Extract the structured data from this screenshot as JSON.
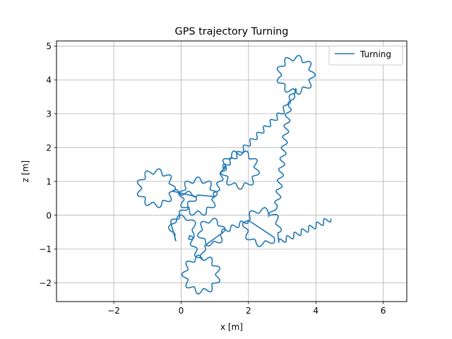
{
  "chart_data": {
    "type": "line",
    "title": "GPS trajectory Turning",
    "xlabel": "x [m]",
    "ylabel": "z [m]",
    "xlim": [
      -3.7,
      6.7
    ],
    "ylim": [
      -2.55,
      5.15
    ],
    "xticks": [
      -2,
      0,
      2,
      4,
      6
    ],
    "yticks": [
      -2,
      -1,
      0,
      1,
      2,
      3,
      4,
      5
    ],
    "grid": true,
    "legend_position": "top-right",
    "colors": {
      "series": "#1f77b4",
      "grid": "#b0b0b0"
    },
    "series": [
      {
        "name": "Turning",
        "segments": [
          {
            "kind": "line",
            "from": [
              4.45,
              -0.1
            ],
            "to": [
              2.9,
              -0.8
            ],
            "wiggle_amp": 0.08,
            "wiggles": 7
          },
          {
            "kind": "loop",
            "center": [
              2.4,
              -0.35
            ],
            "radius": 0.5,
            "start_deg": -20,
            "sweep_deg": 340,
            "wiggle_amp": 0.08,
            "wiggles": 8
          },
          {
            "kind": "line",
            "from": [
              2.0,
              -0.15
            ],
            "to": [
              1.2,
              -0.5
            ],
            "wiggle_amp": 0.07,
            "wiggles": 3
          },
          {
            "kind": "loop",
            "center": [
              0.9,
              -0.5
            ],
            "radius": 0.35,
            "start_deg": 0,
            "sweep_deg": 360,
            "wiggle_amp": 0.07,
            "wiggles": 6
          },
          {
            "kind": "line",
            "from": [
              0.7,
              -0.9
            ],
            "to": [
              0.6,
              -1.3
            ],
            "wiggle_amp": 0.05,
            "wiggles": 1
          },
          {
            "kind": "loop",
            "center": [
              0.6,
              -1.75
            ],
            "radius": 0.5,
            "start_deg": 90,
            "sweep_deg": 360,
            "wiggle_amp": 0.08,
            "wiggles": 9
          },
          {
            "kind": "line",
            "from": [
              0.5,
              -1.25
            ],
            "to": [
              0.25,
              -0.6
            ],
            "wiggle_amp": 0.07,
            "wiggles": 2
          },
          {
            "kind": "loop",
            "center": [
              0.05,
              -0.4
            ],
            "radius": 0.35,
            "start_deg": -60,
            "sweep_deg": 300,
            "wiggle_amp": 0.07,
            "wiggles": 5
          },
          {
            "kind": "line",
            "from": [
              -0.3,
              -0.25
            ],
            "to": [
              0.45,
              0.55
            ],
            "wiggle_amp": 0.07,
            "wiggles": 3
          },
          {
            "kind": "loop",
            "center": [
              -0.75,
              0.8
            ],
            "radius": 0.5,
            "start_deg": -10,
            "sweep_deg": 360,
            "wiggle_amp": 0.08,
            "wiggles": 9
          },
          {
            "kind": "line",
            "from": [
              -0.25,
              0.7
            ],
            "to": [
              0.5,
              0.6
            ],
            "wiggle_amp": 0.07,
            "wiggles": 2
          },
          {
            "kind": "loop",
            "center": [
              0.5,
              0.55
            ],
            "radius": 0.5,
            "start_deg": 0,
            "sweep_deg": 360,
            "wiggle_amp": 0.08,
            "wiggles": 9
          },
          {
            "kind": "line",
            "from": [
              1.0,
              0.55
            ],
            "to": [
              1.3,
              1.45
            ],
            "wiggle_amp": 0.07,
            "wiggles": 3
          },
          {
            "kind": "loop",
            "center": [
              1.75,
              1.35
            ],
            "radius": 0.5,
            "start_deg": 180,
            "sweep_deg": 360,
            "wiggle_amp": 0.08,
            "wiggles": 9
          },
          {
            "kind": "line",
            "from": [
              1.25,
              1.4
            ],
            "to": [
              3.05,
              3.1
            ],
            "wiggle_amp": 0.07,
            "wiggles": 9
          },
          {
            "kind": "line",
            "from": [
              3.05,
              3.1
            ],
            "to": [
              3.4,
              3.75
            ],
            "wiggle_amp": 0.06,
            "wiggles": 2
          },
          {
            "kind": "loop",
            "center": [
              3.4,
              4.15
            ],
            "radius": 0.5,
            "start_deg": 270,
            "sweep_deg": 360,
            "wiggle_amp": 0.08,
            "wiggles": 9
          },
          {
            "kind": "line",
            "from": [
              3.35,
              3.6
            ],
            "to": [
              3.2,
              3.2
            ],
            "wiggle_amp": 0.06,
            "wiggles": 1
          },
          {
            "kind": "line",
            "from": [
              3.2,
              3.2
            ],
            "to": [
              2.85,
              0.3
            ],
            "wiggle_amp": 0.08,
            "wiggles": 9
          },
          {
            "kind": "line",
            "from": [
              2.85,
              0.3
            ],
            "to": [
              2.6,
              -0.05
            ],
            "wiggle_amp": 0.05,
            "wiggles": 1
          }
        ]
      }
    ]
  }
}
